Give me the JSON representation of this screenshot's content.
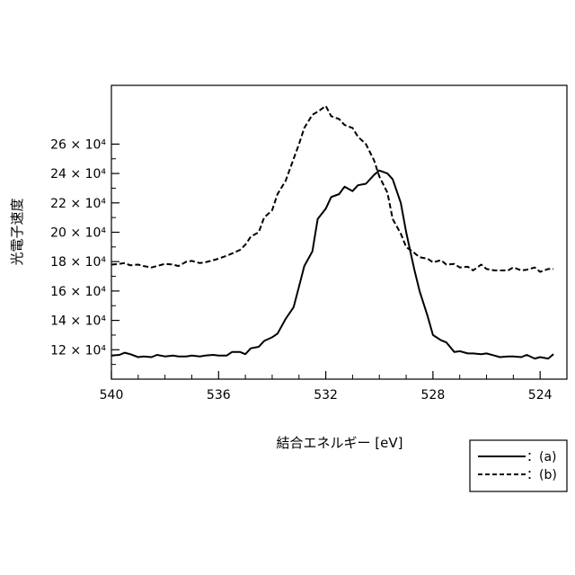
{
  "chart_data": {
    "type": "line",
    "xlabel": "結合エネルギー [eV]",
    "ylabel": "光電子速度",
    "xlim": [
      540,
      523
    ],
    "x_reversed": true,
    "ylim": [
      100000,
      300000
    ],
    "x_ticks": [
      {
        "value": 540,
        "label": "540"
      },
      {
        "value": 536,
        "label": "536"
      },
      {
        "value": 532,
        "label": "532"
      },
      {
        "value": 528,
        "label": "528"
      },
      {
        "value": 524,
        "label": "524"
      }
    ],
    "x_minor_ticks": [
      539,
      538,
      537,
      535,
      534,
      533,
      531,
      530,
      529,
      527,
      526,
      525,
      523
    ],
    "y_ticks": [
      {
        "value": 120000,
        "label": "12 × 10⁴"
      },
      {
        "value": 140000,
        "label": "14 × 10⁴"
      },
      {
        "value": 160000,
        "label": "16 × 10⁴"
      },
      {
        "value": 180000,
        "label": "18 × 10⁴"
      },
      {
        "value": 200000,
        "label": "20 × 10⁴"
      },
      {
        "value": 220000,
        "label": "22 × 10⁴"
      },
      {
        "value": 240000,
        "label": "24 × 10⁴"
      },
      {
        "value": 260000,
        "label": "26 × 10⁴"
      }
    ],
    "y_minor_ticks": [
      110000,
      130000,
      150000,
      170000,
      190000,
      210000,
      230000,
      250000
    ],
    "legend_position": "bottom-right-outside",
    "series": [
      {
        "name": "：(a)",
        "style": "solid",
        "color": "#000000",
        "x": [
          540,
          539.7,
          539.5,
          539.3,
          539,
          538.8,
          538.5,
          538.3,
          538,
          537.7,
          537.5,
          537.2,
          537,
          536.7,
          536.5,
          536.2,
          536,
          535.7,
          535.5,
          535.2,
          535,
          534.8,
          534.5,
          534.3,
          534,
          533.8,
          533.5,
          533.2,
          533,
          532.8,
          532.5,
          532.3,
          532,
          531.8,
          531.5,
          531.3,
          531,
          530.8,
          530.5,
          530.2,
          530,
          529.7,
          529.5,
          529.2,
          529,
          528.7,
          528.5,
          528.2,
          528,
          527.7,
          527.5,
          527.2,
          527,
          526.7,
          526.5,
          526.2,
          526,
          525.7,
          525.5,
          525.2,
          525,
          524.7,
          524.5,
          524.2,
          524,
          523.7,
          523.5
        ],
        "y": [
          116000,
          116500,
          118000,
          117000,
          115000,
          115500,
          115000,
          116500,
          115500,
          116000,
          115500,
          115500,
          116000,
          115500,
          116000,
          116500,
          116000,
          116000,
          118500,
          118500,
          117000,
          121000,
          122000,
          126000,
          128500,
          131000,
          141000,
          149000,
          163000,
          177000,
          187000,
          209000,
          216000,
          224000,
          226000,
          231000,
          228000,
          232000,
          233000,
          239000,
          242000,
          240000,
          236000,
          220000,
          200000,
          175000,
          160000,
          143000,
          130000,
          126500,
          125000,
          118500,
          119000,
          117500,
          117500,
          117000,
          117500,
          116000,
          115000,
          115500,
          115500,
          115000,
          116500,
          114000,
          115000,
          114000,
          117000
        ]
      },
      {
        "name": "：(b)",
        "style": "dashed",
        "color": "#000000",
        "x": [
          540,
          539.7,
          539.5,
          539.3,
          539,
          538.8,
          538.5,
          538.3,
          538,
          537.7,
          537.5,
          537.2,
          537,
          536.7,
          536.5,
          536.2,
          536,
          535.7,
          535.5,
          535.2,
          535,
          534.8,
          534.5,
          534.3,
          534,
          533.8,
          533.5,
          533.2,
          533,
          532.8,
          532.5,
          532.3,
          532,
          531.8,
          531.5,
          531.3,
          531,
          530.8,
          530.5,
          530.2,
          530,
          529.7,
          529.5,
          529.2,
          529,
          528.7,
          528.5,
          528.2,
          528,
          527.7,
          527.5,
          527.2,
          527,
          526.7,
          526.5,
          526.2,
          526,
          525.7,
          525.5,
          525.2,
          525,
          524.7,
          524.5,
          524.2,
          524,
          523.7,
          523.5
        ],
        "y": [
          178000,
          178500,
          179000,
          177500,
          178000,
          177000,
          176000,
          177000,
          178500,
          178000,
          177000,
          180000,
          180500,
          179000,
          179500,
          181000,
          182000,
          184000,
          185500,
          188000,
          191500,
          197000,
          200000,
          210000,
          215000,
          226000,
          235000,
          250000,
          260000,
          271000,
          280000,
          282000,
          286000,
          279000,
          277000,
          273000,
          271000,
          265000,
          260000,
          249000,
          238000,
          227000,
          209000,
          199000,
          190000,
          186000,
          183000,
          182000,
          179500,
          181000,
          178000,
          178500,
          176000,
          176500,
          174000,
          178000,
          175000,
          174000,
          174000,
          174000,
          176000,
          174000,
          174500,
          176000,
          173000,
          175000,
          175000
        ]
      }
    ]
  }
}
